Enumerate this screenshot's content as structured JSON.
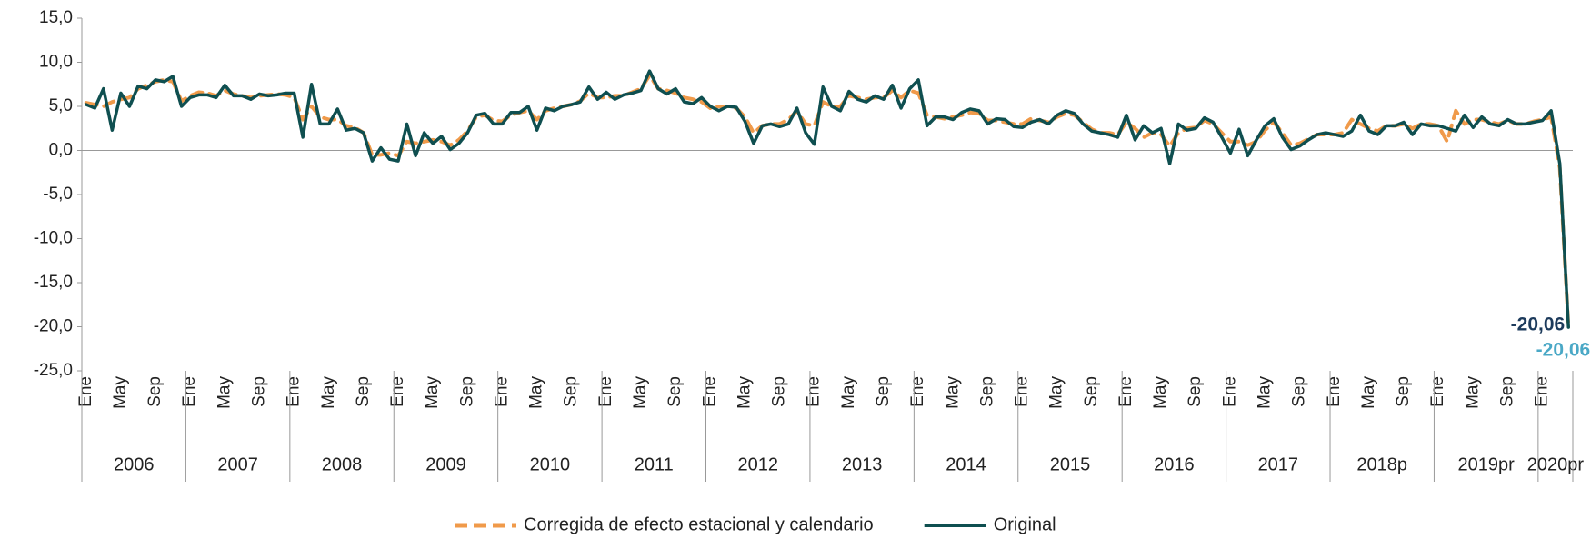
{
  "chart_data": {
    "type": "line",
    "categories": [
      "Ene",
      null,
      null,
      null,
      "May",
      null,
      null,
      null,
      "Sep",
      null,
      null,
      null,
      "Ene",
      null,
      null,
      null,
      "May",
      null,
      null,
      null,
      "Sep",
      null,
      null,
      null,
      "Ene",
      null,
      null,
      null,
      "May",
      null,
      null,
      null,
      "Sep",
      null,
      null,
      null,
      "Ene",
      null,
      null,
      null,
      "May",
      null,
      null,
      null,
      "Sep",
      null,
      null,
      null,
      "Ene",
      null,
      null,
      null,
      "May",
      null,
      null,
      null,
      "Sep",
      null,
      null,
      null,
      "Ene",
      null,
      null,
      null,
      "May",
      null,
      null,
      null,
      "Sep",
      null,
      null,
      null,
      "Ene",
      null,
      null,
      null,
      "May",
      null,
      null,
      null,
      "Sep",
      null,
      null,
      null,
      "Ene",
      null,
      null,
      null,
      "May",
      null,
      null,
      null,
      "Sep",
      null,
      null,
      null,
      "Ene",
      null,
      null,
      null,
      "May",
      null,
      null,
      null,
      "Sep",
      null,
      null,
      null,
      "Ene",
      null,
      null,
      null,
      "May",
      null,
      null,
      null,
      "Sep",
      null,
      null,
      null,
      "Ene",
      null,
      null,
      null,
      "May",
      null,
      null,
      null,
      "Sep",
      null,
      null,
      null,
      "Ene",
      null,
      null,
      null,
      "May",
      null,
      null,
      null,
      "Sep",
      null,
      null,
      null,
      "Ene",
      null,
      null,
      null,
      "May",
      null,
      null,
      null,
      "Sep",
      null,
      null,
      null,
      "Ene",
      null,
      null,
      null,
      "May",
      null,
      null,
      null,
      "Sep",
      null,
      null,
      null,
      "Ene",
      null,
      null,
      null
    ],
    "year_groups": [
      "2006",
      "2007",
      "2008",
      "2009",
      "2010",
      "2011",
      "2012",
      "2013",
      "2014",
      "2015",
      "2016",
      "2017",
      "2018p",
      "2019pr",
      "2020pr"
    ],
    "series": [
      {
        "name": "Corregida de efecto estacional y calendario",
        "color": "#f09a4a",
        "dashed": true,
        "label_color": "#4aa8c6",
        "end_label": "-20,06",
        "values": [
          5.4,
          5.2,
          5.0,
          5.5,
          5.8,
          6.0,
          7.0,
          7.4,
          7.8,
          8.0,
          7.8,
          5.6,
          6.2,
          6.6,
          6.5,
          6.2,
          6.8,
          6.4,
          6.2,
          6.0,
          6.2,
          6.3,
          6.4,
          6.3,
          6.0,
          3.5,
          5.0,
          3.8,
          3.5,
          3.5,
          2.8,
          2.6,
          2.0,
          -0.5,
          -0.5,
          -0.3,
          -0.6,
          1.0,
          0.8,
          1.0,
          1.2,
          1.0,
          0.6,
          1.2,
          2.2,
          3.8,
          4.0,
          3.4,
          3.3,
          4.0,
          4.3,
          4.5,
          3.5,
          4.5,
          4.8,
          5.0,
          5.2,
          5.6,
          6.5,
          6.0,
          6.0,
          6.2,
          6.2,
          6.6,
          7.0,
          8.5,
          7.0,
          6.8,
          6.5,
          6.0,
          5.8,
          5.5,
          4.8,
          5.0,
          5.0,
          4.8,
          3.8,
          2.0,
          2.8,
          3.0,
          3.0,
          3.5,
          4.5,
          3.0,
          2.8,
          5.5,
          5.0,
          5.0,
          6.2,
          6.0,
          5.8,
          6.0,
          6.0,
          6.8,
          6.0,
          6.8,
          6.5,
          4.0,
          3.8,
          3.6,
          3.8,
          4.0,
          4.3,
          4.2,
          3.4,
          3.4,
          3.2,
          3.0,
          3.0,
          3.6,
          3.4,
          3.2,
          3.8,
          4.2,
          4.0,
          3.2,
          2.4,
          2.0,
          2.0,
          1.8,
          3.2,
          2.5,
          1.5,
          2.0,
          1.8,
          0.5,
          2.0,
          2.5,
          2.6,
          3.4,
          3.0,
          2.0,
          1.0,
          1.0,
          0.6,
          1.0,
          2.3,
          3.2,
          2.0,
          0.6,
          0.8,
          1.3,
          1.8,
          1.8,
          1.8,
          2.0,
          3.5,
          3.0,
          2.5,
          2.2,
          2.8,
          2.8,
          3.0,
          2.5,
          3.0,
          3.0,
          2.8,
          1.0,
          4.5,
          3.0,
          3.5,
          3.5,
          3.2,
          3.0,
          3.4,
          3.0,
          3.0,
          3.3,
          3.5,
          3.8,
          -2.0,
          -20.06
        ]
      },
      {
        "name": "Original",
        "color": "#0f4f50",
        "dashed": false,
        "label_color": "#1d3b5c",
        "end_label": "-20,06",
        "values": [
          5.2,
          4.8,
          7.0,
          2.3,
          6.5,
          5.0,
          7.3,
          7.0,
          8.0,
          7.8,
          8.4,
          5.0,
          6.0,
          6.3,
          6.3,
          6.0,
          7.4,
          6.2,
          6.2,
          5.8,
          6.4,
          6.2,
          6.3,
          6.5,
          6.5,
          1.5,
          7.5,
          3.0,
          3.0,
          4.7,
          2.3,
          2.5,
          2.0,
          -1.2,
          0.3,
          -1.0,
          -1.2,
          3.0,
          -0.6,
          2.0,
          0.8,
          1.6,
          0.1,
          0.8,
          2.0,
          4.0,
          4.2,
          3.0,
          3.0,
          4.3,
          4.3,
          5.0,
          2.3,
          4.8,
          4.5,
          5.0,
          5.2,
          5.5,
          7.2,
          5.8,
          6.6,
          5.8,
          6.3,
          6.5,
          6.8,
          9.0,
          7.0,
          6.4,
          7.0,
          5.5,
          5.3,
          6.0,
          5.0,
          4.5,
          5.0,
          4.9,
          3.3,
          0.8,
          2.8,
          3.0,
          2.7,
          3.0,
          4.8,
          2.0,
          0.7,
          7.2,
          5.0,
          4.5,
          6.7,
          5.8,
          5.5,
          6.2,
          5.8,
          7.4,
          4.8,
          7.0,
          8.0,
          2.8,
          3.8,
          3.8,
          3.5,
          4.3,
          4.7,
          4.5,
          3.0,
          3.6,
          3.5,
          2.7,
          2.6,
          3.2,
          3.5,
          3.0,
          4.0,
          4.5,
          4.2,
          3.0,
          2.2,
          2.0,
          1.8,
          1.5,
          4.0,
          1.2,
          2.8,
          2.0,
          2.5,
          -1.5,
          3.0,
          2.3,
          2.5,
          3.7,
          3.2,
          1.5,
          -0.3,
          2.4,
          -0.6,
          1.2,
          2.8,
          3.6,
          1.5,
          0.1,
          0.5,
          1.2,
          1.8,
          2.0,
          1.8,
          1.6,
          2.2,
          4.0,
          2.2,
          1.8,
          2.8,
          2.8,
          3.2,
          1.8,
          3.0,
          2.8,
          2.8,
          2.5,
          2.2,
          4.0,
          2.6,
          3.8,
          3.0,
          2.8,
          3.5,
          3.0,
          3.0,
          3.2,
          3.4,
          4.5,
          -1.5,
          -20.06
        ]
      }
    ],
    "ylim": [
      -25,
      15
    ],
    "yticks": [
      {
        "value": -25,
        "label": "-25,0"
      },
      {
        "value": -20,
        "label": "-20,0"
      },
      {
        "value": -15,
        "label": "-15,0"
      },
      {
        "value": -10,
        "label": "-10,0"
      },
      {
        "value": -5,
        "label": "-5,0"
      },
      {
        "value": 0,
        "label": "0,0"
      },
      {
        "value": 5,
        "label": "5,0"
      },
      {
        "value": 10,
        "label": "10,0"
      },
      {
        "value": 15,
        "label": "15,0"
      }
    ],
    "legend": "bottom"
  }
}
